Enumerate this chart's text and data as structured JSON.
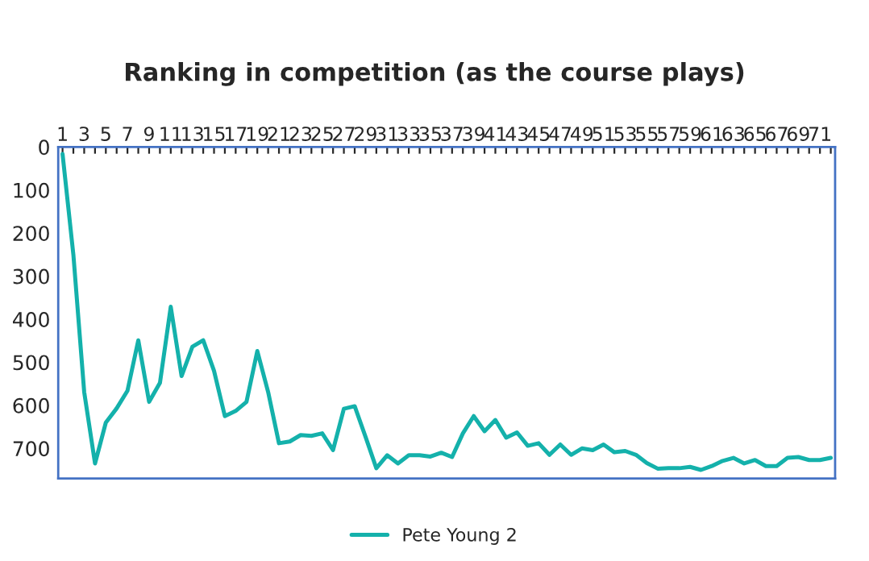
{
  "chart_data": {
    "type": "line",
    "title": "Ranking in competition (as the course plays)",
    "categories": [
      "1",
      null,
      "3",
      null,
      "5",
      null,
      "7",
      null,
      "9",
      null,
      "11",
      null,
      "13",
      null,
      "15",
      null,
      "17",
      null,
      "19",
      null,
      "21",
      null,
      "23",
      null,
      "25",
      null,
      "27",
      null,
      "29",
      null,
      "31",
      null,
      "33",
      null,
      "35",
      null,
      "37",
      null,
      "39",
      null,
      "41",
      null,
      "43",
      null,
      "45",
      null,
      "47",
      null,
      "49",
      null,
      "51",
      null,
      "53",
      null,
      "55",
      null,
      "57",
      null,
      "59",
      null,
      "61",
      null,
      "63",
      null,
      "65",
      null,
      "67",
      null,
      "69",
      null,
      "71",
      null
    ],
    "series": [
      {
        "name": "Pete Young 2",
        "color": "#14b1ab",
        "values": [
          16,
          250,
          569,
          735,
          640,
          607,
          566,
          449,
          592,
          548,
          371,
          532,
          464,
          449,
          520,
          625,
          613,
          592,
          474,
          569,
          688,
          684,
          669,
          671,
          665,
          704,
          608,
          602,
          673,
          746,
          716,
          735,
          716,
          716,
          719,
          710,
          720,
          665,
          625,
          660,
          634,
          675,
          663,
          694,
          688,
          715,
          691,
          715,
          700,
          704,
          691,
          709,
          706,
          715,
          734,
          747,
          746,
          746,
          743,
          750,
          741,
          729,
          722,
          735,
          727,
          741,
          741,
          722,
          720,
          727,
          727,
          722
        ]
      }
    ],
    "ylim": [
      770,
      0
    ],
    "yticks": [
      0,
      100,
      200,
      300,
      400,
      500,
      600,
      700
    ],
    "grid": false,
    "legend": "bottom",
    "marker": "none",
    "line_style": "solid"
  }
}
